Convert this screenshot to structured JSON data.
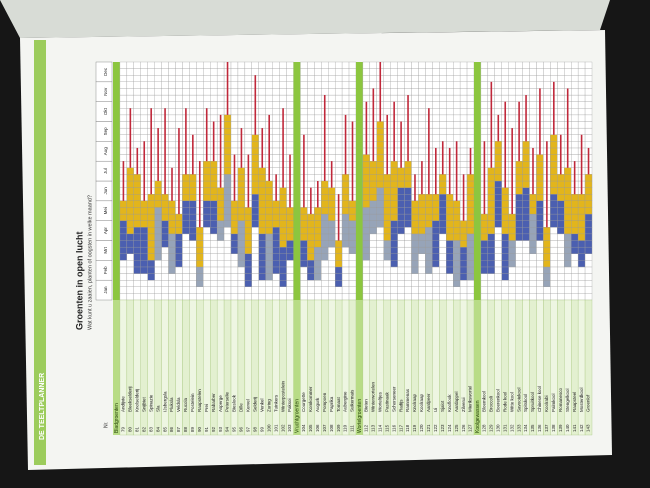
{
  "page": {
    "side_label": "DE TEELTPLANNER",
    "title": "Groenten in open lucht",
    "subtitle": "Wat kunt u zaaien, planten of oogsten in welke maand?",
    "number_header": "Nr.",
    "months": [
      "Jan",
      "Feb",
      "Mrt",
      "Apr",
      "Mei",
      "Jun",
      "Jul",
      "Aug",
      "Sep",
      "Okt",
      "Nov",
      "Dec"
    ],
    "groups": [
      {
        "name": "Bladgroenten",
        "rows": [
          {
            "no": "79",
            "name": "Andijvie"
          },
          {
            "no": "80",
            "name": "Bleekselderij"
          },
          {
            "no": "81",
            "name": "Knolselderij"
          },
          {
            "no": "82",
            "name": "Snijbiet"
          },
          {
            "no": "83",
            "name": "Spinazie"
          },
          {
            "no": "84",
            "name": "Sla"
          },
          {
            "no": "85",
            "name": "IJsbergsla"
          },
          {
            "no": "86",
            "name": "Pluksla"
          },
          {
            "no": "87",
            "name": "Veldsla"
          },
          {
            "no": "88",
            "name": "Rucola"
          },
          {
            "no": "89",
            "name": "Postelein"
          },
          {
            "no": "90",
            "name": "Raapstelen"
          },
          {
            "no": "91",
            "name": "Prei"
          },
          {
            "no": "92",
            "name": "Rabarber"
          },
          {
            "no": "93",
            "name": "Asperge"
          },
          {
            "no": "94",
            "name": "Peterselie"
          },
          {
            "no": "95",
            "name": "Bieslook"
          },
          {
            "no": "96",
            "name": "Dille"
          },
          {
            "no": "97",
            "name": "Kervel"
          },
          {
            "no": "98",
            "name": "Selderij"
          },
          {
            "no": "99",
            "name": "Venkel"
          },
          {
            "no": "100",
            "name": "Zuring"
          },
          {
            "no": "101",
            "name": "Tuinkers"
          },
          {
            "no": "102",
            "name": "Winterpostelein"
          },
          {
            "no": "103",
            "name": "Paksoi"
          }
        ]
      },
      {
        "name": "Vruchtgroenten",
        "rows": [
          {
            "no": "104",
            "name": "Courgette"
          },
          {
            "no": "105",
            "name": "Komkommer"
          },
          {
            "no": "106",
            "name": "Augurk"
          },
          {
            "no": "107",
            "name": "Pompoen"
          },
          {
            "no": "108",
            "name": "Paprika"
          },
          {
            "no": "109",
            "name": "Tomaat"
          },
          {
            "no": "110",
            "name": "Aubergine"
          },
          {
            "no": "111",
            "name": "Suikermais"
          }
        ]
      },
      {
        "name": "Wortelgroenten",
        "rows": [
          {
            "no": "112",
            "name": "Bieten"
          },
          {
            "no": "113",
            "name": "Winterwortelen"
          },
          {
            "no": "114",
            "name": "Worteltjes"
          },
          {
            "no": "115",
            "name": "Pastinaak"
          },
          {
            "no": "116",
            "name": "Schorseneer"
          },
          {
            "no": "117",
            "name": "Radijs"
          },
          {
            "no": "118",
            "name": "Rammenas"
          },
          {
            "no": "119",
            "name": "Knolraap"
          },
          {
            "no": "120",
            "name": "Koolraap"
          },
          {
            "no": "121",
            "name": "Aardpeer"
          },
          {
            "no": "122",
            "name": "Ui"
          },
          {
            "no": "123",
            "name": "Sjalot"
          },
          {
            "no": "124",
            "name": "Knoflook"
          },
          {
            "no": "125",
            "name": "Aardappel"
          },
          {
            "no": "126",
            "name": "Zilverui"
          },
          {
            "no": "127",
            "name": "Mierikswortel"
          }
        ]
      },
      {
        "name": "Koolgewassen",
        "rows": [
          {
            "no": "128",
            "name": "Bloemkool"
          },
          {
            "no": "129",
            "name": "Broccoli"
          },
          {
            "no": "130",
            "name": "Boerenkool"
          },
          {
            "no": "131",
            "name": "Rode kool"
          },
          {
            "no": "132",
            "name": "Witte kool"
          },
          {
            "no": "133",
            "name": "Savooiekool"
          },
          {
            "no": "134",
            "name": "Spitskool"
          },
          {
            "no": "135",
            "name": "Spruitkool"
          },
          {
            "no": "136",
            "name": "Chinese kool"
          },
          {
            "no": "137",
            "name": "Koolrabi"
          },
          {
            "no": "138",
            "name": "Palmkool"
          },
          {
            "no": "139",
            "name": "Romanesco"
          },
          {
            "no": "140",
            "name": "Stengelkool"
          },
          {
            "no": "141",
            "name": "Raapsteel"
          },
          {
            "no": "142",
            "name": "Mosterdkool"
          },
          {
            "no": "143",
            "name": "Groenlof"
          }
        ]
      }
    ]
  }
}
